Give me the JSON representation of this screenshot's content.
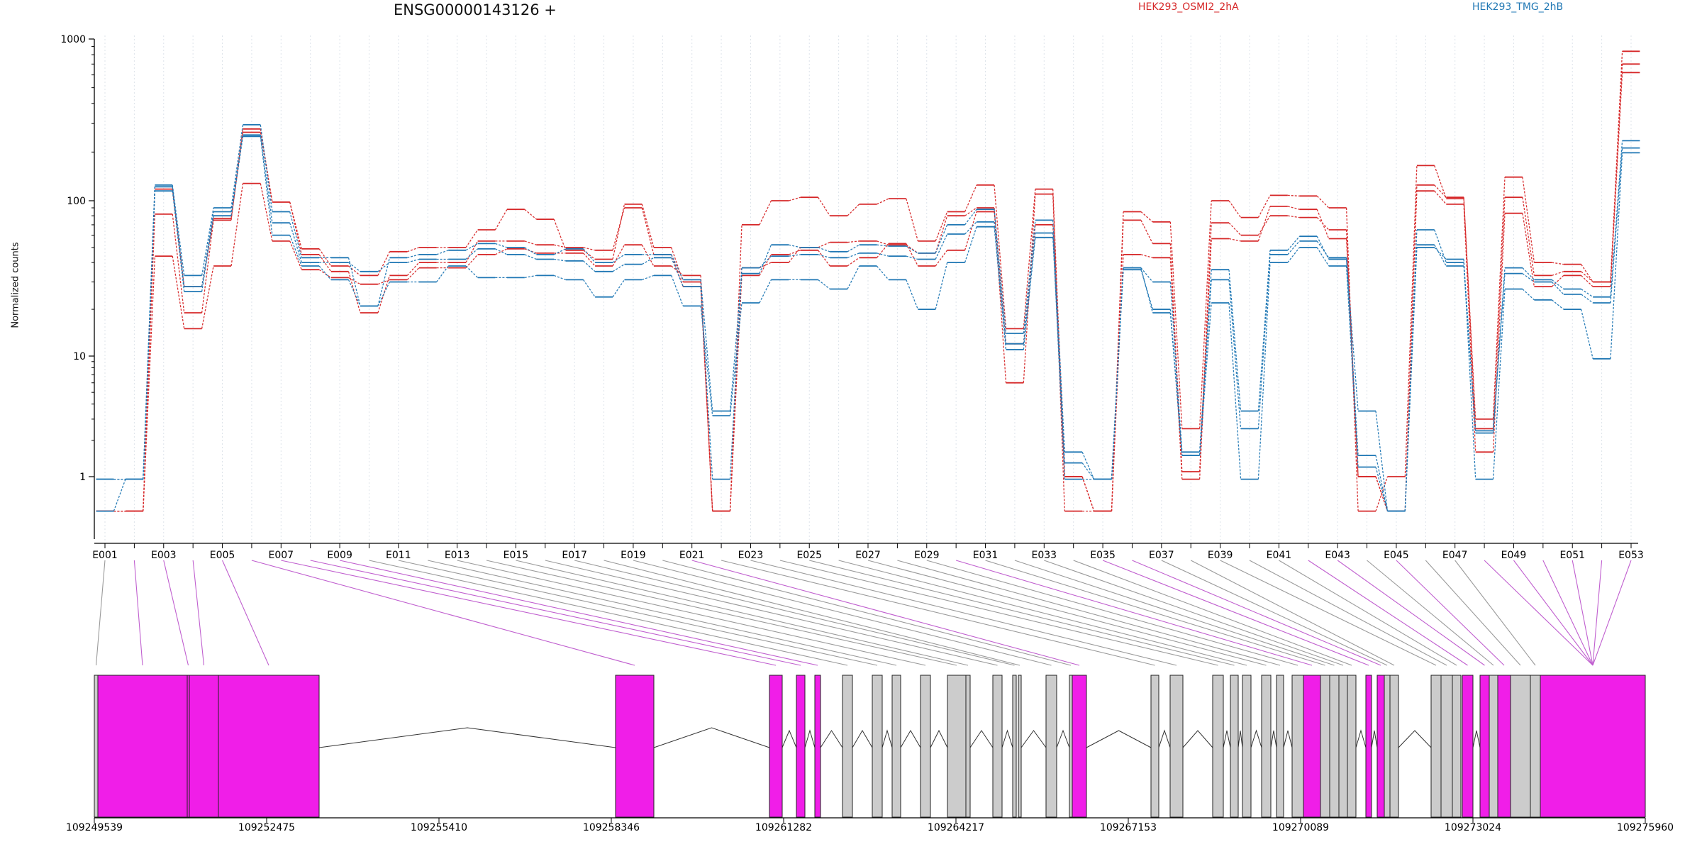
{
  "chart_data": {
    "type": "line",
    "title": "ENSG00000143126 +",
    "ylabel": "Normalized counts",
    "yscale": "log",
    "ylim": [
      0.47,
      1000
    ],
    "yticks": [
      1,
      10,
      100,
      1000
    ],
    "ytick_labels": [
      "1",
      "10",
      "100",
      "1000"
    ],
    "grid": "vertical dotted at each exon",
    "legend": {
      "placement": "top",
      "entries": [
        {
          "label": "HEK293_OSMI2_2hA",
          "color": "#d62728"
        },
        {
          "label": "HEK293_TMG_2hB",
          "color": "#1f77b4"
        }
      ]
    },
    "exons": [
      "E001",
      "E002",
      "E003",
      "E004",
      "E005",
      "E006",
      "E007",
      "E008",
      "E009",
      "E010",
      "E011",
      "E012",
      "E013",
      "E014",
      "E015",
      "E016",
      "E017",
      "E018",
      "E019",
      "E020",
      "E021",
      "E022",
      "E023",
      "E024",
      "E025",
      "E026",
      "E027",
      "E028",
      "E029",
      "E030",
      "E031",
      "E032",
      "E033",
      "E034",
      "E035",
      "E036",
      "E037",
      "E038",
      "E039",
      "E040",
      "E041",
      "E042",
      "E043",
      "E044",
      "E045",
      "E046",
      "E047",
      "E048",
      "E049",
      "E050",
      "E051",
      "E052",
      "E053"
    ],
    "exon_tick_labels": [
      "E001",
      "E003",
      "E005",
      "E007",
      "E009",
      "E011",
      "E013",
      "E015",
      "E017",
      "E019",
      "E021",
      "E023",
      "E025",
      "E027",
      "E029",
      "E031",
      "E033",
      "E035",
      "E037",
      "E039",
      "E041",
      "E043",
      "E045",
      "E047",
      "E049",
      "E051",
      "E053"
    ],
    "series": [
      {
        "group": "HEK293_OSMI2_2hA",
        "color": "#d62728",
        "values": [
          0.5,
          0.5,
          118,
          28,
          77,
          265,
          98,
          49,
          38,
          33,
          47,
          50,
          50,
          65,
          88,
          76,
          48,
          42,
          95,
          50,
          30,
          0.5,
          70,
          100,
          105,
          80,
          95,
          103,
          55,
          85,
          125,
          15,
          118,
          1,
          0.5,
          85,
          73,
          2.5,
          100,
          78,
          108,
          107,
          90,
          0.5,
          1,
          165,
          103,
          3,
          140,
          40,
          39,
          30,
          840
        ]
      },
      {
        "group": "HEK293_OSMI2_2hA",
        "color": "#d62728",
        "values": [
          0.5,
          0.5,
          82,
          19,
          75,
          278,
          98,
          45,
          35,
          19,
          33,
          40,
          40,
          55,
          55,
          52,
          50,
          48,
          90,
          45,
          28,
          0.5,
          37,
          40,
          50,
          54,
          55,
          52,
          46,
          80,
          90,
          6,
          110,
          0.5,
          0.5,
          75,
          53,
          1.1,
          72,
          60,
          80,
          78,
          65,
          1,
          0.5,
          125,
          105,
          2.5,
          105,
          33,
          35,
          30,
          700
        ]
      },
      {
        "group": "HEK293_OSMI2_2hA",
        "color": "#d62728",
        "values": [
          0.5,
          0.5,
          44,
          15,
          38,
          128,
          55,
          36,
          32,
          29,
          31,
          37,
          37,
          45,
          49,
          46,
          46,
          38,
          52,
          38,
          33,
          0.5,
          33,
          45,
          48,
          38,
          43,
          53,
          38,
          48,
          85,
          12,
          70,
          1,
          0.5,
          45,
          43,
          0.95,
          57,
          55,
          92,
          88,
          57,
          1,
          0.5,
          115,
          95,
          1.6,
          83,
          28,
          33,
          28,
          620
        ]
      },
      {
        "group": "HEK293_TMG_2hB",
        "color": "#1f77b4",
        "values": [
          0.95,
          0.95,
          125,
          33,
          90,
          295,
          85,
          43,
          43,
          21,
          43,
          45,
          48,
          53,
          50,
          45,
          49,
          40,
          45,
          45,
          31,
          3.5,
          34,
          52,
          50,
          47,
          52,
          51,
          46,
          70,
          88,
          14,
          75,
          1.6,
          0.95,
          37,
          30,
          1.6,
          36,
          3.5,
          48,
          59,
          42,
          3.5,
          0.5,
          65,
          40,
          2.4,
          37,
          31,
          27,
          24,
          235
        ]
      },
      {
        "group": "HEK293_TMG_2hB",
        "color": "#1f77b4",
        "values": [
          0.5,
          0.95,
          122,
          28,
          85,
          255,
          72,
          40,
          40,
          35,
          40,
          42,
          42,
          49,
          45,
          42,
          41,
          35,
          39,
          43,
          28,
          0.95,
          37,
          44,
          45,
          43,
          46,
          44,
          42,
          61,
          73,
          12,
          62,
          0.95,
          0.95,
          36,
          20,
          1.5,
          31,
          2.5,
          45,
          55,
          43,
          1.5,
          0.5,
          52,
          38,
          2.3,
          34,
          30,
          25,
          22,
          212
        ]
      },
      {
        "group": "HEK293_TMG_2hB",
        "color": "#1f77b4",
        "values": [
          0.95,
          0.95,
          115,
          26,
          80,
          250,
          60,
          38,
          31,
          21,
          30,
          30,
          38,
          32,
          32,
          33,
          31,
          24,
          31,
          33,
          21,
          3.2,
          22,
          31,
          31,
          27,
          38,
          31,
          20,
          40,
          68,
          11,
          58,
          1.3,
          0.95,
          37,
          19,
          1.5,
          22,
          0.95,
          40,
          50,
          38,
          1.2,
          0.5,
          50,
          42,
          0.95,
          27,
          23,
          20,
          9.5,
          198
        ]
      }
    ],
    "genome_axis": {
      "ticks": [
        "109249539",
        "109252475",
        "109255410",
        "109258346",
        "109261282",
        "109264217",
        "109267153",
        "109270089",
        "109273024",
        "109275960"
      ]
    },
    "gene_model_colors": {
      "tested_exon": "#f01ee8",
      "other_exon": "#cccccc"
    }
  }
}
